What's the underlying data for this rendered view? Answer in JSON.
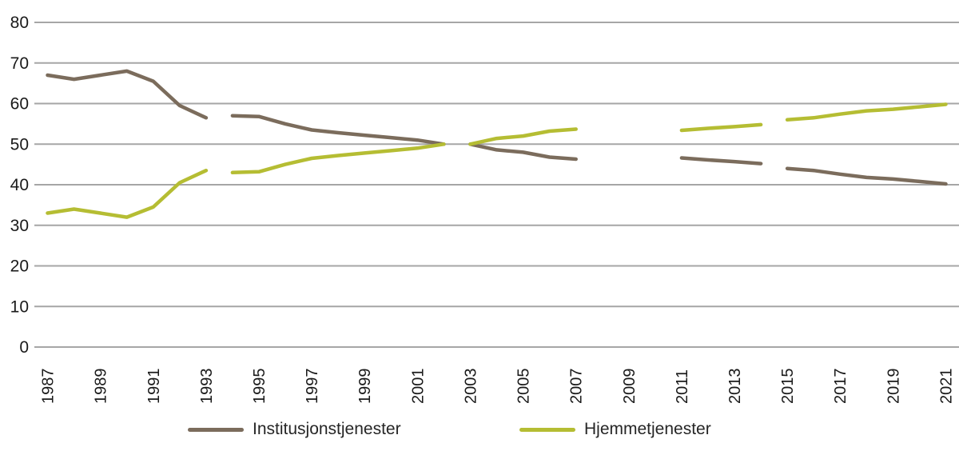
{
  "chart_data": {
    "type": "line",
    "title": "",
    "xlabel": "",
    "ylabel": "",
    "ylim": [
      0,
      80
    ],
    "yticks": [
      0,
      10,
      20,
      30,
      40,
      50,
      60,
      70,
      80
    ],
    "grid": "horizontal-only",
    "gridline_color": "#a6a6a6",
    "tick_label_color": "#1a1a1a",
    "legend_position": "bottom",
    "x": [
      1987,
      1988,
      1989,
      1990,
      1991,
      1992,
      1993,
      1994,
      1995,
      1996,
      1997,
      1998,
      1999,
      2000,
      2001,
      2002,
      2003,
      2004,
      2005,
      2006,
      2007,
      2008,
      2009,
      2010,
      2011,
      2012,
      2013,
      2014,
      2015,
      2016,
      2017,
      2018,
      2019,
      2020,
      2021
    ],
    "x_tick_labels": [
      "1987",
      "1989",
      "1991",
      "1993",
      "1995",
      "1997",
      "1999",
      "2001",
      "2003",
      "2005",
      "2007",
      "2009",
      "2011",
      "2013",
      "2015",
      "2017",
      "2019",
      "2021"
    ],
    "segments": [
      [
        1987,
        1993
      ],
      [
        1994,
        2002
      ],
      [
        2003,
        2007
      ],
      [
        2011,
        2014
      ],
      [
        2015,
        2021
      ]
    ],
    "series": [
      {
        "name": "Institusjonstjenester",
        "color": "#7b6c5c",
        "values": [
          67,
          66,
          67,
          68,
          65.5,
          59.5,
          56.5,
          57,
          56.8,
          55,
          53.5,
          52.8,
          52.2,
          51.6,
          51,
          50,
          50,
          48.6,
          48,
          46.8,
          46.3,
          null,
          null,
          null,
          46.6,
          46.1,
          45.7,
          45.2,
          44,
          43.5,
          42.6,
          41.8,
          41.4,
          40.8,
          40.2
        ]
      },
      {
        "name": "Hjemmetjenester",
        "color": "#b5bd33",
        "values": [
          33,
          34,
          33,
          32,
          34.5,
          40.5,
          43.5,
          43,
          43.2,
          45,
          46.5,
          47.2,
          47.8,
          48.4,
          49,
          50,
          50,
          51.4,
          52,
          53.2,
          53.7,
          null,
          null,
          null,
          53.4,
          53.9,
          54.3,
          54.8,
          56,
          56.5,
          57.4,
          58.2,
          58.6,
          59.2,
          59.8
        ]
      }
    ]
  },
  "legend": {
    "items": [
      {
        "label": "Institusjonstjenester"
      },
      {
        "label": "Hjemmetjenester"
      }
    ]
  }
}
